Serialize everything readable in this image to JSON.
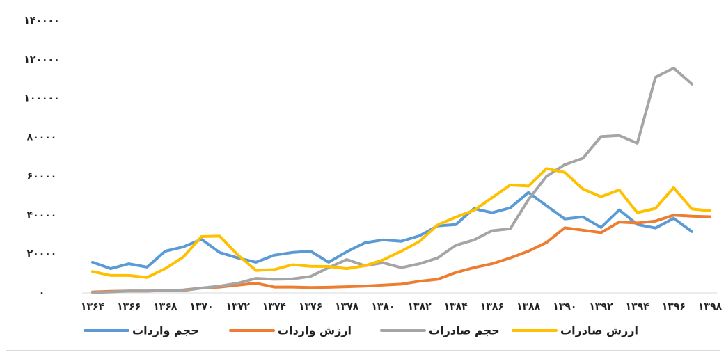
{
  "chart_data": {
    "type": "line",
    "categories": [
      "۱۳۶۴",
      null,
      "۱۳۶۶",
      null,
      "۱۳۶۸",
      null,
      "۱۳۷۰",
      null,
      "۱۳۷۲",
      null,
      "۱۳۷۴",
      null,
      "۱۳۷۶",
      null,
      "۱۳۷۸",
      null,
      "۱۳۸۰",
      null,
      "۱۳۸۲",
      null,
      "۱۳۸۴",
      null,
      "۱۳۸۶",
      null,
      "۱۳۸۸",
      null,
      "۱۳۹۰",
      null,
      "۱۳۹۲",
      null,
      "۱۳۹۴",
      null,
      "۱۳۹۶",
      null,
      "۱۳۹۸"
    ],
    "series": [
      {
        "name": "حجم واردات",
        "color": "#5b9bd5",
        "values": [
          15800,
          12500,
          15000,
          13300,
          21500,
          23700,
          27600,
          20800,
          18000,
          15800,
          19400,
          20800,
          21500,
          15800,
          21200,
          25800,
          27300,
          26600,
          29400,
          34500,
          35200,
          43400,
          41300,
          43800,
          51700,
          44900,
          38100,
          39100,
          33700,
          42700,
          35200,
          33400,
          38400,
          31600,
          null
        ]
      },
      {
        "name": "ارزش واردات",
        "color": "#ed7d31",
        "values": [
          500,
          800,
          1000,
          1000,
          1200,
          1500,
          2500,
          3000,
          4000,
          5000,
          3000,
          3000,
          2800,
          2900,
          3200,
          3500,
          4000,
          4500,
          6000,
          7000,
          10500,
          13000,
          15000,
          18000,
          21500,
          26000,
          33500,
          32300,
          31000,
          36500,
          36000,
          37000,
          40000,
          39500,
          39200
        ]
      },
      {
        "name": "حجم صادرات",
        "color": "#a5a5a5",
        "values": [
          200,
          500,
          1000,
          1000,
          1200,
          1200,
          2500,
          3500,
          5000,
          7500,
          7000,
          7200,
          8500,
          13000,
          17200,
          14000,
          15500,
          13000,
          15000,
          18000,
          24500,
          27300,
          32000,
          33000,
          48000,
          60000,
          66000,
          69300,
          80500,
          81000,
          77000,
          111000,
          115700,
          107500,
          null
        ]
      },
      {
        "name": "ارزش صادرات",
        "color": "#ffc000",
        "values": [
          11000,
          9000,
          9000,
          8000,
          12500,
          18500,
          29000,
          29200,
          19500,
          11600,
          12000,
          14500,
          13700,
          13600,
          12500,
          14000,
          17000,
          21500,
          26500,
          35000,
          39000,
          42500,
          49000,
          55500,
          55000,
          64000,
          62000,
          53500,
          49500,
          53000,
          41300,
          43500,
          54200,
          43200,
          42300
        ]
      }
    ],
    "ylim": [
      0,
      140000
    ],
    "yticks": [
      {
        "value": 0,
        "label": "۰"
      },
      {
        "value": 20000,
        "label": "۲۰۰۰۰"
      },
      {
        "value": 40000,
        "label": "۴۰۰۰۰"
      },
      {
        "value": 60000,
        "label": "۶۰۰۰۰"
      },
      {
        "value": 80000,
        "label": "۸۰۰۰۰"
      },
      {
        "value": 100000,
        "label": "۱۰۰۰۰۰"
      },
      {
        "value": 120000,
        "label": "۱۲۰۰۰۰"
      },
      {
        "value": 140000,
        "label": "۱۴۰۰۰۰"
      }
    ],
    "grid": false,
    "legend": "bottom"
  }
}
